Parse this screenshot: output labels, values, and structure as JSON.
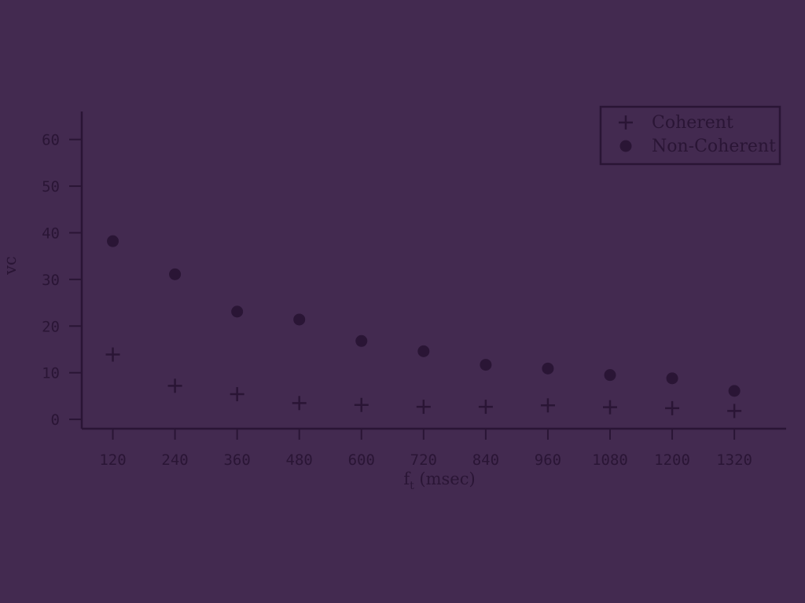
{
  "chart_data": {
    "type": "scatter",
    "x": [
      120,
      240,
      360,
      480,
      600,
      720,
      840,
      960,
      1080,
      1200,
      1320
    ],
    "series": [
      {
        "name": "Coherent",
        "marker": "plus",
        "values": [
          13.9,
          7.2,
          5.4,
          3.5,
          3.1,
          2.7,
          2.7,
          3.0,
          2.6,
          2.4,
          1.8
        ]
      },
      {
        "name": "Non-Coherent",
        "marker": "circle",
        "values": [
          38.2,
          31.1,
          23.1,
          21.4,
          16.8,
          14.6,
          11.7,
          10.9,
          9.5,
          8.8,
          6.1
        ]
      }
    ],
    "xlabel_main": "f",
    "xlabel_sub": "t",
    "xlabel_rest": " (msec)",
    "ylabel": "vc",
    "xticks": [
      "120",
      "240",
      "360",
      "480",
      "600",
      "720",
      "840",
      "960",
      "1080",
      "1200",
      "1320"
    ],
    "yticks": [
      "0",
      "10",
      "20",
      "30",
      "40",
      "50",
      "60"
    ],
    "xlim": [
      60,
      1420
    ],
    "ylim": [
      -2,
      66
    ],
    "grid": false,
    "legend_position": "top-right",
    "colors": {
      "background": "#432a50",
      "foreground": "#2a1535"
    }
  }
}
